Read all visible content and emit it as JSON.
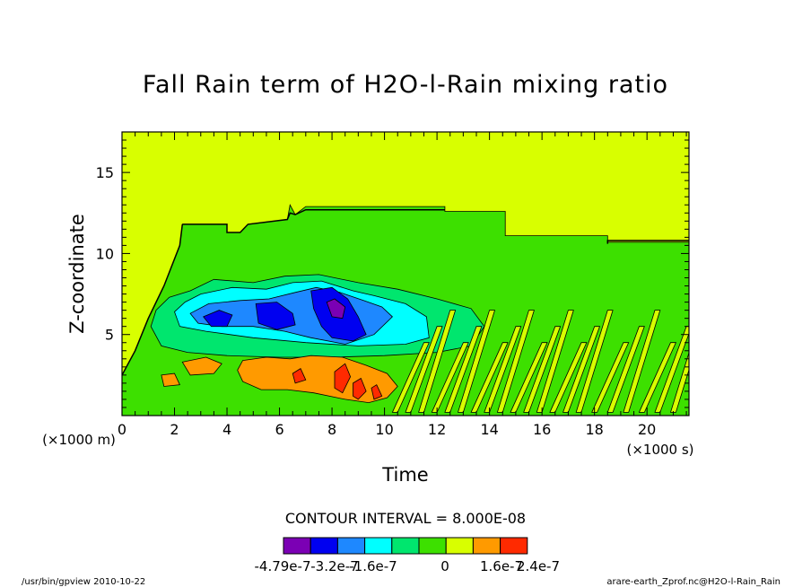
{
  "chart_data": {
    "type": "heatmap",
    "title": "Fall Rain term of H2O-l-Rain mixing ratio",
    "xlabel": "Time",
    "ylabel": "Z-coordinate",
    "x_unit_label": "(×1000 s)",
    "y_unit_label": "(×1000 m)",
    "xlim": [
      0,
      21.6
    ],
    "ylim": [
      0,
      17.5
    ],
    "x_ticks": [
      0,
      2,
      4,
      6,
      8,
      10,
      12,
      14,
      16,
      18,
      20
    ],
    "y_ticks": [
      5,
      10,
      15
    ],
    "contour_interval_label": "CONTOUR INTERVAL = 8.000E-08",
    "legend": {
      "colors": [
        "#7b00b4",
        "#0000f0",
        "#1e88ff",
        "#00ffff",
        "#00e66e",
        "#3de000",
        "#d8ff00",
        "#ff9a00",
        "#ff2a00"
      ],
      "labels": [
        "-4.79e-7",
        "-3.2e-7",
        "-1.6e-7",
        "0",
        "1.6e-7",
        "2.4e-7"
      ]
    },
    "background_color": "#d8ff00",
    "regions": [
      {
        "name": "weak negative (green) envelope",
        "color": "#3de000",
        "points": [
          [
            0,
            2.5
          ],
          [
            0.5,
            4
          ],
          [
            1,
            6
          ],
          [
            1.6,
            8
          ],
          [
            2.2,
            10.5
          ],
          [
            2.3,
            11.8
          ],
          [
            4,
            11.8
          ],
          [
            4,
            11.3
          ],
          [
            4.5,
            11.3
          ],
          [
            4.8,
            11.8
          ],
          [
            6.3,
            12.1
          ],
          [
            6.4,
            13
          ],
          [
            6.6,
            12.4
          ],
          [
            7,
            12.9
          ],
          [
            12.3,
            12.9
          ],
          [
            12.3,
            12.6
          ],
          [
            14.6,
            12.6
          ],
          [
            14.6,
            11.1
          ],
          [
            18.5,
            11.1
          ],
          [
            18.5,
            10.7
          ],
          [
            21.6,
            10.7
          ],
          [
            21.6,
            0
          ],
          [
            0,
            0
          ]
        ]
      },
      {
        "name": "moderate negative (cyan-green) zone",
        "color": "#00e66e",
        "points": [
          [
            1.8,
            7.3
          ],
          [
            2.6,
            7.7
          ],
          [
            3.5,
            8.4
          ],
          [
            5,
            8.2
          ],
          [
            6.2,
            8.6
          ],
          [
            7.5,
            8.7
          ],
          [
            9,
            8.2
          ],
          [
            10.5,
            7.8
          ],
          [
            12,
            7.2
          ],
          [
            13.3,
            6.6
          ],
          [
            13.8,
            5.5
          ],
          [
            13.3,
            4.3
          ],
          [
            12,
            3.9
          ],
          [
            10,
            3.7
          ],
          [
            8,
            3.6
          ],
          [
            6,
            3.6
          ],
          [
            4,
            3.7
          ],
          [
            2.5,
            3.9
          ],
          [
            1.5,
            4.3
          ],
          [
            1.1,
            5.5
          ],
          [
            1.3,
            6.5
          ]
        ]
      },
      {
        "name": "negative (cyan) core",
        "color": "#00ffff",
        "points": [
          [
            2,
            6.4
          ],
          [
            2.4,
            7
          ],
          [
            3,
            7.5
          ],
          [
            4.2,
            7.9
          ],
          [
            5.5,
            7.8
          ],
          [
            6.5,
            8.2
          ],
          [
            7.6,
            8.3
          ],
          [
            8.8,
            7.7
          ],
          [
            9.6,
            7.4
          ],
          [
            10.8,
            6.9
          ],
          [
            11.6,
            6.1
          ],
          [
            11.7,
            4.8
          ],
          [
            10.8,
            4.4
          ],
          [
            9,
            4.3
          ],
          [
            7,
            4.5
          ],
          [
            5,
            4.8
          ],
          [
            3.2,
            5.2
          ],
          [
            2.2,
            5.5
          ]
        ]
      },
      {
        "name": "negative (blue) band",
        "color": "#1e88ff",
        "points": [
          [
            2.6,
            6.3
          ],
          [
            3.3,
            6.9
          ],
          [
            4.5,
            7.1
          ],
          [
            5.6,
            7.2
          ],
          [
            6.6,
            7.6
          ],
          [
            7.4,
            7.9
          ],
          [
            8.3,
            7.6
          ],
          [
            9.2,
            7.1
          ],
          [
            9.9,
            6.7
          ],
          [
            10.3,
            6.1
          ],
          [
            9.6,
            5
          ],
          [
            8.5,
            4.4
          ],
          [
            7.2,
            4.8
          ],
          [
            6.2,
            5.2
          ],
          [
            5,
            5.5
          ],
          [
            3.8,
            5.5
          ],
          [
            2.9,
            5.7
          ]
        ]
      },
      {
        "name": "strong negative (dark blue) blob",
        "color": "#0000f0",
        "points": [
          [
            3.1,
            6.1
          ],
          [
            3.7,
            6.5
          ],
          [
            4.2,
            6.2
          ],
          [
            4.0,
            5.5
          ],
          [
            3.4,
            5.5
          ]
        ]
      },
      {
        "name": "strong negative (dark blue) blob",
        "color": "#0000f0",
        "points": [
          [
            5.1,
            6.9
          ],
          [
            5.9,
            7.0
          ],
          [
            6.5,
            6.3
          ],
          [
            6.6,
            5.6
          ],
          [
            5.9,
            5.3
          ],
          [
            5.2,
            5.7
          ]
        ]
      },
      {
        "name": "strong negative (dark blue) blob",
        "color": "#0000f0",
        "points": [
          [
            7.2,
            7.7
          ],
          [
            8.0,
            7.9
          ],
          [
            8.6,
            7.2
          ],
          [
            9.0,
            6.1
          ],
          [
            9.3,
            5.0
          ],
          [
            8.8,
            4.6
          ],
          [
            8.0,
            4.8
          ],
          [
            7.6,
            5.5
          ],
          [
            7.3,
            6.6
          ]
        ]
      },
      {
        "name": "extreme negative (purple) core",
        "color": "#7b00b4",
        "points": [
          [
            7.8,
            7.0
          ],
          [
            8.1,
            7.2
          ],
          [
            8.5,
            6.7
          ],
          [
            8.4,
            6.0
          ],
          [
            8.0,
            6.1
          ]
        ]
      },
      {
        "name": "positive (orange) lobe",
        "color": "#ff9a00",
        "points": [
          [
            4.6,
            3.4
          ],
          [
            5.5,
            3.6
          ],
          [
            6.4,
            3.5
          ],
          [
            7.2,
            3.7
          ],
          [
            8.4,
            3.6
          ],
          [
            9.3,
            3.1
          ],
          [
            10.1,
            2.6
          ],
          [
            10.5,
            1.8
          ],
          [
            10.1,
            1.1
          ],
          [
            9.4,
            0.8
          ],
          [
            8.5,
            1.0
          ],
          [
            7.3,
            1.4
          ],
          [
            6.3,
            1.6
          ],
          [
            5.3,
            1.6
          ],
          [
            4.6,
            2.1
          ],
          [
            4.4,
            2.8
          ]
        ]
      },
      {
        "name": "positive (orange) lobe",
        "color": "#ff9a00",
        "points": [
          [
            2.3,
            3.3
          ],
          [
            3.2,
            3.6
          ],
          [
            3.8,
            3.2
          ],
          [
            3.5,
            2.6
          ],
          [
            2.6,
            2.5
          ]
        ]
      },
      {
        "name": "positive (orange) lobe",
        "color": "#ff9a00",
        "points": [
          [
            1.5,
            2.5
          ],
          [
            2.0,
            2.6
          ],
          [
            2.2,
            1.9
          ],
          [
            1.6,
            1.8
          ]
        ]
      },
      {
        "name": "strong positive (red) streak",
        "color": "#ff2a00",
        "points": [
          [
            8.1,
            2.7
          ],
          [
            8.5,
            3.2
          ],
          [
            8.7,
            2.4
          ],
          [
            8.4,
            1.4
          ],
          [
            8.1,
            1.7
          ]
        ]
      },
      {
        "name": "strong positive (red) streak",
        "color": "#ff2a00",
        "points": [
          [
            8.8,
            2.0
          ],
          [
            9.1,
            2.3
          ],
          [
            9.3,
            1.5
          ],
          [
            9.0,
            1.0
          ],
          [
            8.8,
            1.2
          ]
        ]
      },
      {
        "name": "strong positive (red) streak",
        "color": "#ff2a00",
        "points": [
          [
            6.5,
            2.6
          ],
          [
            6.8,
            2.9
          ],
          [
            7.0,
            2.2
          ],
          [
            6.6,
            2.0
          ]
        ]
      },
      {
        "name": "strong positive (red) streak",
        "color": "#ff2a00",
        "points": [
          [
            9.5,
            1.7
          ],
          [
            9.7,
            1.9
          ],
          [
            9.9,
            1.2
          ],
          [
            9.6,
            1.0
          ]
        ]
      }
    ],
    "stripes": {
      "color": "#d8ff00",
      "x_starts": [
        10.3,
        10.8,
        11.3,
        11.8,
        12.3,
        12.8,
        13.3,
        13.8,
        14.3,
        14.8,
        15.3,
        15.8,
        16.3,
        16.8,
        17.3,
        17.9,
        18.5,
        19.1,
        19.7,
        20.3,
        20.9
      ],
      "y_bottom": 0.2,
      "y_top_range": [
        4.5,
        6.5
      ],
      "x_tilt": 1.2,
      "width": 0.2
    },
    "contour_lines": [
      {
        "name": "zero contour top",
        "dashed": false,
        "points": [
          [
            2.3,
            11.8
          ],
          [
            4,
            11.8
          ],
          [
            4,
            11.3
          ],
          [
            4.5,
            11.3
          ],
          [
            4.8,
            11.8
          ],
          [
            6.3,
            12.1
          ],
          [
            6.4,
            12.5
          ],
          [
            6.6,
            12.4
          ],
          [
            7,
            12.7
          ],
          [
            12.3,
            12.7
          ]
        ]
      },
      {
        "name": "zero contour right",
        "dashed": false,
        "points": [
          [
            18.5,
            10.6
          ],
          [
            18.5,
            10.8
          ],
          [
            21.6,
            10.8
          ]
        ]
      },
      {
        "name": "zero contour left edge",
        "dashed": false,
        "points": [
          [
            0,
            2.5
          ],
          [
            0.5,
            4
          ],
          [
            1,
            6
          ],
          [
            1.6,
            8
          ],
          [
            2.2,
            10.5
          ],
          [
            2.3,
            11.8
          ]
        ]
      }
    ]
  },
  "footer": {
    "left": "/usr/bin/gpview 2010-10-22",
    "right": "arare-earth_Zprof.nc@H2O-l-Rain_Rain"
  }
}
